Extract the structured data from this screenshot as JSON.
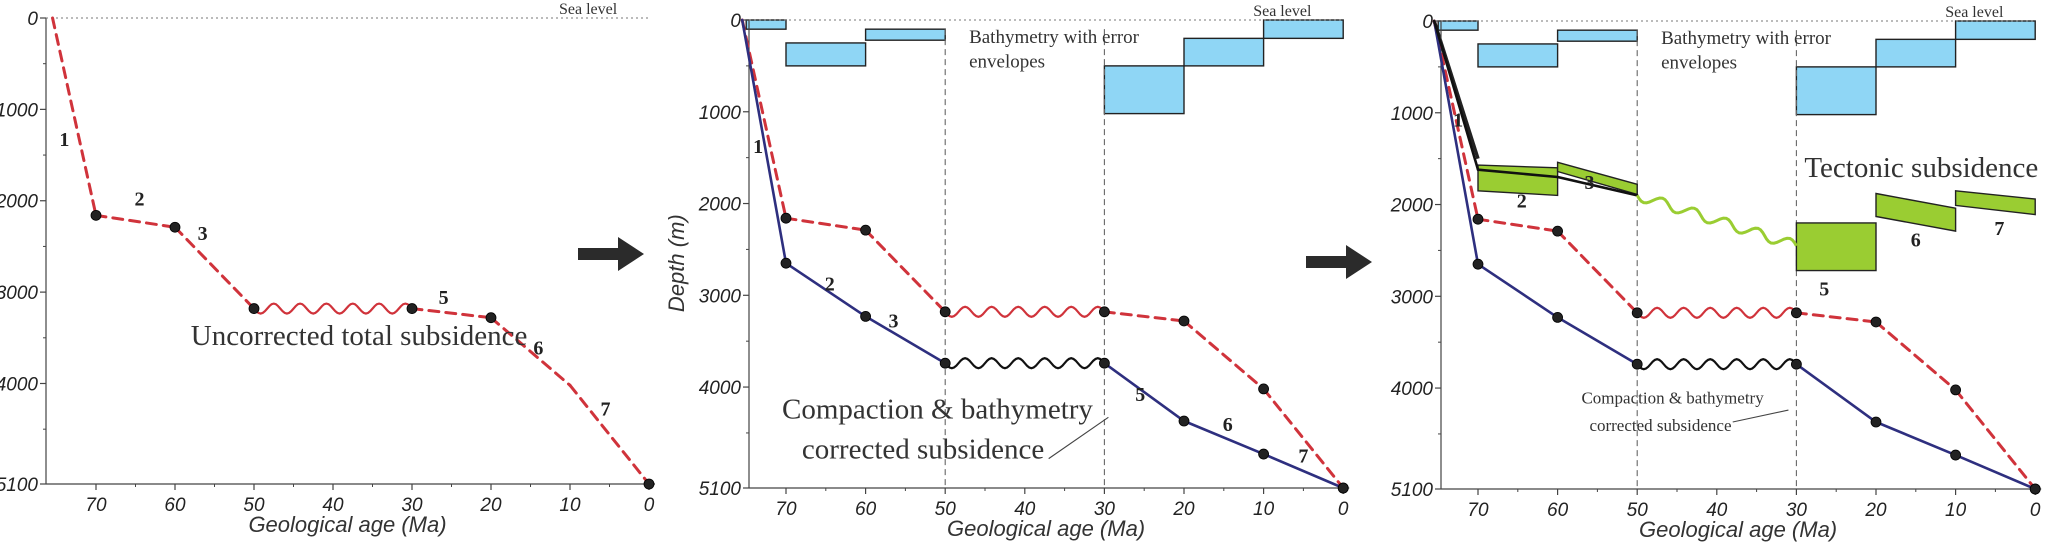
{
  "colors": {
    "uncorrected": "#d0333b",
    "corrected": "#2e2f7f",
    "black_curve": "#111111",
    "tectonic": "#9acd32",
    "bathymetry": "#8fd6f5",
    "marker": "#222222",
    "axis": "#444444"
  },
  "arrows": [
    "right-arrow",
    "right-arrow"
  ],
  "chart_data": [
    {
      "type": "line",
      "xlabel": "Geological age (Ma)",
      "ylabel": "",
      "x_ticks": [
        70,
        60,
        50,
        40,
        30,
        20,
        10,
        0
      ],
      "y_ticks": [
        0,
        1000,
        2000,
        3000,
        4000,
        5100
      ],
      "xlim": [
        75,
        0
      ],
      "ylim": [
        0,
        5100
      ],
      "sea_level_label": "Sea level",
      "annotations": [
        {
          "text": "Uncorrected total subsidence",
          "size": "big",
          "age": 58,
          "depth": 3580
        }
      ],
      "series": [
        {
          "key": "uncorrected",
          "points": [
            [
              75.5,
              0
            ],
            [
              70,
              2160
            ],
            [
              60,
              2290
            ],
            [
              50,
              3180
            ],
            [
              30,
              3180
            ],
            [
              20,
              3280
            ],
            [
              10,
              4020
            ],
            [
              0,
              5100
            ]
          ],
          "dots": [
            1,
            2,
            3,
            4,
            5,
            7
          ],
          "wavy": [
            3,
            4
          ]
        }
      ],
      "segment_labels": [
        {
          "text": "1",
          "age": 74,
          "depth": 1400
        },
        {
          "text": "2",
          "age": 64.5,
          "depth": 2050
        },
        {
          "text": "3",
          "age": 56.5,
          "depth": 2430
        },
        {
          "text": "5",
          "age": 26,
          "depth": 3130
        },
        {
          "text": "6",
          "age": 14,
          "depth": 3680
        },
        {
          "text": "7",
          "age": 5.5,
          "depth": 4350
        }
      ],
      "bathymetry_boxes": []
    },
    {
      "type": "line",
      "xlabel": "Geological age (Ma)",
      "ylabel": "Depth (m)",
      "x_ticks": [
        70,
        60,
        50,
        40,
        30,
        20,
        10,
        0
      ],
      "y_ticks": [
        0,
        1000,
        2000,
        3000,
        4000,
        5100
      ],
      "xlim": [
        75,
        0
      ],
      "ylim": [
        0,
        5100
      ],
      "sea_level_label": "Sea level",
      "annotations": [
        {
          "text": "Bathymetry with error",
          "size": "mid",
          "age": 47,
          "depth": 250
        },
        {
          "text": "envelopes",
          "size": "mid",
          "age": 47,
          "depth": 520
        },
        {
          "text": "Compaction & bathymetry",
          "size": "big",
          "age": 70.5,
          "depth": 4340
        },
        {
          "text": "corrected subsidence",
          "size": "big",
          "age": 68,
          "depth": 4780
        }
      ],
      "leader_lines": [
        [
          [
            29.5,
            4330
          ],
          [
            37,
            4780
          ]
        ]
      ],
      "series": [
        {
          "key": "uncorrected",
          "points": [
            [
              75.5,
              0
            ],
            [
              70,
              2160
            ],
            [
              60,
              2290
            ],
            [
              50,
              3180
            ],
            [
              30,
              3180
            ],
            [
              20,
              3280
            ],
            [
              10,
              4020
            ],
            [
              0,
              5100
            ]
          ],
          "dots": [
            1,
            2,
            3,
            4,
            5,
            6,
            7
          ],
          "wavy": [
            3,
            4
          ]
        },
        {
          "key": "corrected",
          "points": [
            [
              75.5,
              0
            ],
            [
              70,
              2650
            ],
            [
              60,
              3230
            ],
            [
              50,
              3740
            ],
            [
              30,
              3740
            ],
            [
              20,
              4370
            ],
            [
              10,
              4730
            ],
            [
              0,
              5100
            ]
          ],
          "dots": [
            1,
            2,
            3,
            4,
            5,
            6,
            7
          ],
          "wavy": [
            3,
            4
          ],
          "wavy_key": "black_curve"
        }
      ],
      "segment_labels": [
        {
          "text": "1",
          "age": 73.5,
          "depth": 1450
        },
        {
          "text": "2",
          "age": 64.5,
          "depth": 2950
        },
        {
          "text": "3",
          "age": 56.5,
          "depth": 3350
        },
        {
          "text": "5",
          "age": 25.5,
          "depth": 4150
        },
        {
          "text": "6",
          "age": 14.5,
          "depth": 4480
        },
        {
          "text": "7",
          "age": 5,
          "depth": 4820
        }
      ],
      "bathymetry_boxes": [
        {
          "age_from": 75,
          "age_to": 70,
          "top": 0,
          "bottom": 100
        },
        {
          "age_from": 70,
          "age_to": 60,
          "top": 250,
          "bottom": 500
        },
        {
          "age_from": 60,
          "age_to": 50,
          "top": 100,
          "bottom": 220
        },
        {
          "age_from": 30,
          "age_to": 20,
          "top": 500,
          "bottom": 1020
        },
        {
          "age_from": 20,
          "age_to": 10,
          "top": 200,
          "bottom": 500
        },
        {
          "age_from": 10,
          "age_to": 0,
          "top": 0,
          "bottom": 200
        }
      ],
      "dashed_verticals": [
        50,
        30
      ]
    },
    {
      "type": "line",
      "xlabel": "Geological age (Ma)",
      "ylabel": "",
      "x_ticks": [
        70,
        60,
        50,
        40,
        30,
        20,
        10,
        0
      ],
      "y_ticks": [
        0,
        1000,
        2000,
        3000,
        4000,
        5100
      ],
      "xlim": [
        75,
        0
      ],
      "ylim": [
        0,
        5100
      ],
      "sea_level_label": "Sea level",
      "annotations": [
        {
          "text": "Bathymetry with error",
          "size": "mid",
          "age": 47,
          "depth": 250
        },
        {
          "text": "envelopes",
          "size": "mid",
          "age": 47,
          "depth": 520
        },
        {
          "text": "Tectonic subsidence",
          "size": "big",
          "age": 29,
          "depth": 1700
        },
        {
          "text": "Compaction & bathymetry",
          "size": "small",
          "age": 57,
          "depth": 4170
        },
        {
          "text": "corrected subsidence",
          "size": "small",
          "age": 56,
          "depth": 4470
        }
      ],
      "leader_lines": [
        [
          [
            31,
            4240
          ],
          [
            38,
            4370
          ]
        ]
      ],
      "series": [
        {
          "key": "uncorrected",
          "points": [
            [
              75.5,
              0
            ],
            [
              70,
              2160
            ],
            [
              60,
              2290
            ],
            [
              50,
              3180
            ],
            [
              30,
              3180
            ],
            [
              20,
              3280
            ],
            [
              10,
              4020
            ],
            [
              0,
              5100
            ]
          ],
          "dots": [
            1,
            2,
            3,
            4,
            5,
            6,
            7
          ],
          "wavy": [
            3,
            4
          ]
        },
        {
          "key": "corrected",
          "points": [
            [
              75.5,
              0
            ],
            [
              70,
              2650
            ],
            [
              60,
              3230
            ],
            [
              50,
              3740
            ],
            [
              30,
              3740
            ],
            [
              20,
              4370
            ],
            [
              10,
              4730
            ],
            [
              0,
              5100
            ]
          ],
          "dots": [
            1,
            2,
            3,
            4,
            5,
            6,
            7
          ],
          "wavy": [
            3,
            4
          ],
          "wavy_key": "black_curve"
        },
        {
          "key": "tectonic_curve",
          "points": [
            [
              75.5,
              0
            ],
            [
              70,
              1620
            ],
            [
              60,
              1700
            ],
            [
              50,
              1900
            ]
          ],
          "dots": [],
          "wavy": []
        },
        {
          "key": "tectonic_wavy",
          "points": [
            [
              50,
              1900
            ],
            [
              30,
              2450
            ]
          ],
          "dots": [],
          "wavy": [
            0,
            1
          ],
          "wavy_key": "tectonic"
        }
      ],
      "tectonic_blocks": [
        [
          [
            70,
            1570
          ],
          [
            60,
            1600
          ],
          [
            60,
            1900
          ],
          [
            70,
            1850
          ]
        ],
        [
          [
            60,
            1540
          ],
          [
            50,
            1780
          ],
          [
            50,
            1890
          ],
          [
            60,
            1640
          ]
        ],
        [
          [
            30,
            2200
          ],
          [
            20,
            2200
          ],
          [
            20,
            2720
          ],
          [
            30,
            2720
          ]
        ],
        [
          [
            20,
            1880
          ],
          [
            10,
            2040
          ],
          [
            10,
            2290
          ],
          [
            20,
            2130
          ]
        ],
        [
          [
            10,
            1850
          ],
          [
            0,
            1940
          ],
          [
            0,
            2110
          ],
          [
            10,
            2010
          ]
        ]
      ],
      "tectonic_edge": [
        [
          75.5,
          0
        ],
        [
          70,
          1500
        ]
      ],
      "segment_labels": [
        {
          "text": "1",
          "age": 72.5,
          "depth": 1150
        },
        {
          "text": "2",
          "age": 64.5,
          "depth": 2030
        },
        {
          "text": "3",
          "age": 56,
          "depth": 1830
        },
        {
          "text": "5",
          "age": 26.5,
          "depth": 2990
        },
        {
          "text": "6",
          "age": 15,
          "depth": 2460
        },
        {
          "text": "7",
          "age": 4.5,
          "depth": 2330
        }
      ],
      "bathymetry_boxes": [
        {
          "age_from": 75,
          "age_to": 70,
          "top": 0,
          "bottom": 100
        },
        {
          "age_from": 70,
          "age_to": 60,
          "top": 250,
          "bottom": 500
        },
        {
          "age_from": 60,
          "age_to": 50,
          "top": 100,
          "bottom": 220
        },
        {
          "age_from": 30,
          "age_to": 20,
          "top": 500,
          "bottom": 1020
        },
        {
          "age_from": 20,
          "age_to": 10,
          "top": 200,
          "bottom": 500
        },
        {
          "age_from": 10,
          "age_to": 0,
          "top": 0,
          "bottom": 200
        }
      ],
      "dashed_verticals": [
        50,
        30
      ]
    }
  ]
}
